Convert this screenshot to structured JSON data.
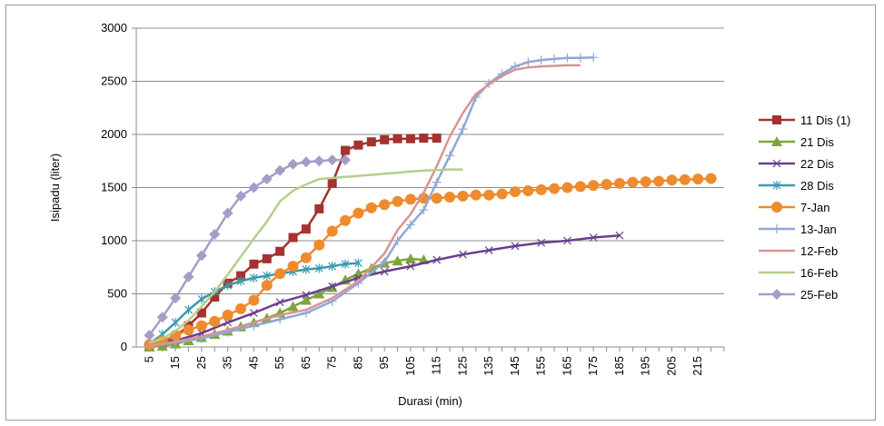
{
  "chart_data": {
    "type": "line",
    "title": "",
    "xlabel": "Durasi (min)",
    "ylabel": "Isipadu (liter)",
    "xlim": [
      0,
      225
    ],
    "ylim": [
      0,
      3000
    ],
    "y_ticks": [
      0,
      500,
      1000,
      1500,
      2000,
      2500,
      3000
    ],
    "x_ticks": [
      5,
      15,
      25,
      35,
      45,
      55,
      65,
      75,
      85,
      95,
      105,
      115,
      125,
      135,
      145,
      155,
      165,
      175,
      185,
      195,
      205,
      215
    ],
    "grid": "horizontal",
    "legend_position": "right",
    "series": [
      {
        "name": "11 Dis (1)",
        "color": "#A5322F",
        "marker": "square",
        "x": [
          5,
          10,
          15,
          20,
          25,
          30,
          35,
          40,
          45,
          50,
          55,
          60,
          65,
          70,
          75,
          80,
          85,
          90,
          95,
          100,
          105,
          110,
          115
        ],
        "y": [
          5,
          40,
          100,
          200,
          320,
          470,
          600,
          670,
          780,
          830,
          900,
          1030,
          1110,
          1300,
          1540,
          1850,
          1900,
          1930,
          1950,
          1960,
          1960,
          1965,
          1965
        ]
      },
      {
        "name": "21 Dis",
        "color": "#7DA53C",
        "marker": "triangle",
        "x": [
          5,
          10,
          15,
          20,
          25,
          30,
          35,
          40,
          45,
          50,
          55,
          60,
          65,
          70,
          75,
          80,
          85,
          90,
          95,
          100,
          105,
          110
        ],
        "y": [
          0,
          10,
          30,
          60,
          90,
          120,
          150,
          190,
          230,
          270,
          320,
          380,
          440,
          500,
          560,
          630,
          690,
          740,
          790,
          810,
          830,
          820
        ]
      },
      {
        "name": "22 Dis",
        "color": "#6A3F8C",
        "marker": "x",
        "x": [
          5,
          15,
          25,
          35,
          45,
          55,
          65,
          75,
          85,
          95,
          105,
          115,
          125,
          135,
          145,
          155,
          165,
          175,
          185
        ],
        "y": [
          10,
          60,
          130,
          230,
          320,
          420,
          490,
          570,
          650,
          710,
          760,
          820,
          870,
          910,
          950,
          980,
          1000,
          1030,
          1050
        ]
      },
      {
        "name": "28 Dis",
        "color": "#3A9AAE",
        "marker": "star",
        "x": [
          5,
          10,
          15,
          20,
          25,
          30,
          35,
          40,
          45,
          50,
          55,
          60,
          65,
          70,
          75,
          80,
          85
        ],
        "y": [
          30,
          120,
          230,
          350,
          450,
          520,
          580,
          620,
          650,
          670,
          690,
          710,
          730,
          740,
          760,
          780,
          790
        ]
      },
      {
        "name": "7-Jan",
        "color": "#EE8B2E",
        "marker": "circle",
        "x": [
          5,
          10,
          15,
          20,
          25,
          30,
          35,
          40,
          45,
          50,
          55,
          60,
          65,
          70,
          75,
          80,
          85,
          90,
          95,
          100,
          105,
          110,
          115,
          120,
          125,
          130,
          135,
          140,
          145,
          150,
          155,
          160,
          165,
          170,
          175,
          180,
          185,
          190,
          195,
          200,
          205,
          210,
          215,
          220
        ],
        "y": [
          20,
          60,
          110,
          160,
          200,
          240,
          300,
          360,
          440,
          580,
          690,
          760,
          840,
          960,
          1090,
          1190,
          1260,
          1310,
          1340,
          1370,
          1390,
          1400,
          1400,
          1410,
          1420,
          1430,
          1430,
          1440,
          1460,
          1470,
          1480,
          1490,
          1500,
          1510,
          1520,
          1530,
          1540,
          1550,
          1555,
          1560,
          1570,
          1575,
          1580,
          1585
        ]
      },
      {
        "name": "13-Jan",
        "color": "#8EA8D6",
        "marker": "plus",
        "x": [
          5,
          15,
          25,
          35,
          45,
          55,
          65,
          75,
          85,
          95,
          100,
          105,
          110,
          115,
          120,
          125,
          130,
          135,
          140,
          145,
          150,
          155,
          160,
          165,
          170,
          175
        ],
        "y": [
          10,
          40,
          80,
          140,
          200,
          260,
          320,
          430,
          600,
          800,
          1000,
          1150,
          1290,
          1550,
          1800,
          2050,
          2350,
          2480,
          2570,
          2640,
          2680,
          2700,
          2710,
          2720,
          2720,
          2725
        ]
      },
      {
        "name": "12-Feb",
        "color": "#D99493",
        "marker": "none",
        "x": [
          5,
          15,
          25,
          35,
          45,
          55,
          65,
          75,
          85,
          95,
          100,
          105,
          110,
          115,
          120,
          125,
          130,
          135,
          140,
          145,
          150,
          155,
          160,
          165,
          170
        ],
        "y": [
          10,
          50,
          100,
          160,
          230,
          300,
          350,
          460,
          620,
          880,
          1100,
          1250,
          1450,
          1700,
          1980,
          2200,
          2380,
          2470,
          2550,
          2610,
          2630,
          2640,
          2645,
          2650,
          2650
        ]
      },
      {
        "name": "16-Feb",
        "color": "#B2D08B",
        "marker": "none",
        "x": [
          5,
          10,
          15,
          20,
          25,
          30,
          35,
          40,
          45,
          50,
          55,
          60,
          65,
          70,
          75,
          80,
          85,
          90,
          95,
          100,
          105,
          110,
          115,
          120,
          125
        ],
        "y": [
          40,
          80,
          150,
          250,
          380,
          520,
          680,
          850,
          1020,
          1180,
          1370,
          1470,
          1530,
          1580,
          1590,
          1600,
          1610,
          1620,
          1630,
          1640,
          1650,
          1660,
          1665,
          1670,
          1670
        ]
      },
      {
        "name": "25-Feb",
        "color": "#A79BC8",
        "marker": "diamond",
        "x": [
          5,
          10,
          15,
          20,
          25,
          30,
          35,
          40,
          45,
          50,
          55,
          60,
          65,
          70,
          75,
          80
        ],
        "y": [
          110,
          280,
          460,
          660,
          860,
          1060,
          1260,
          1420,
          1500,
          1580,
          1660,
          1720,
          1740,
          1750,
          1760,
          1760
        ]
      }
    ]
  }
}
